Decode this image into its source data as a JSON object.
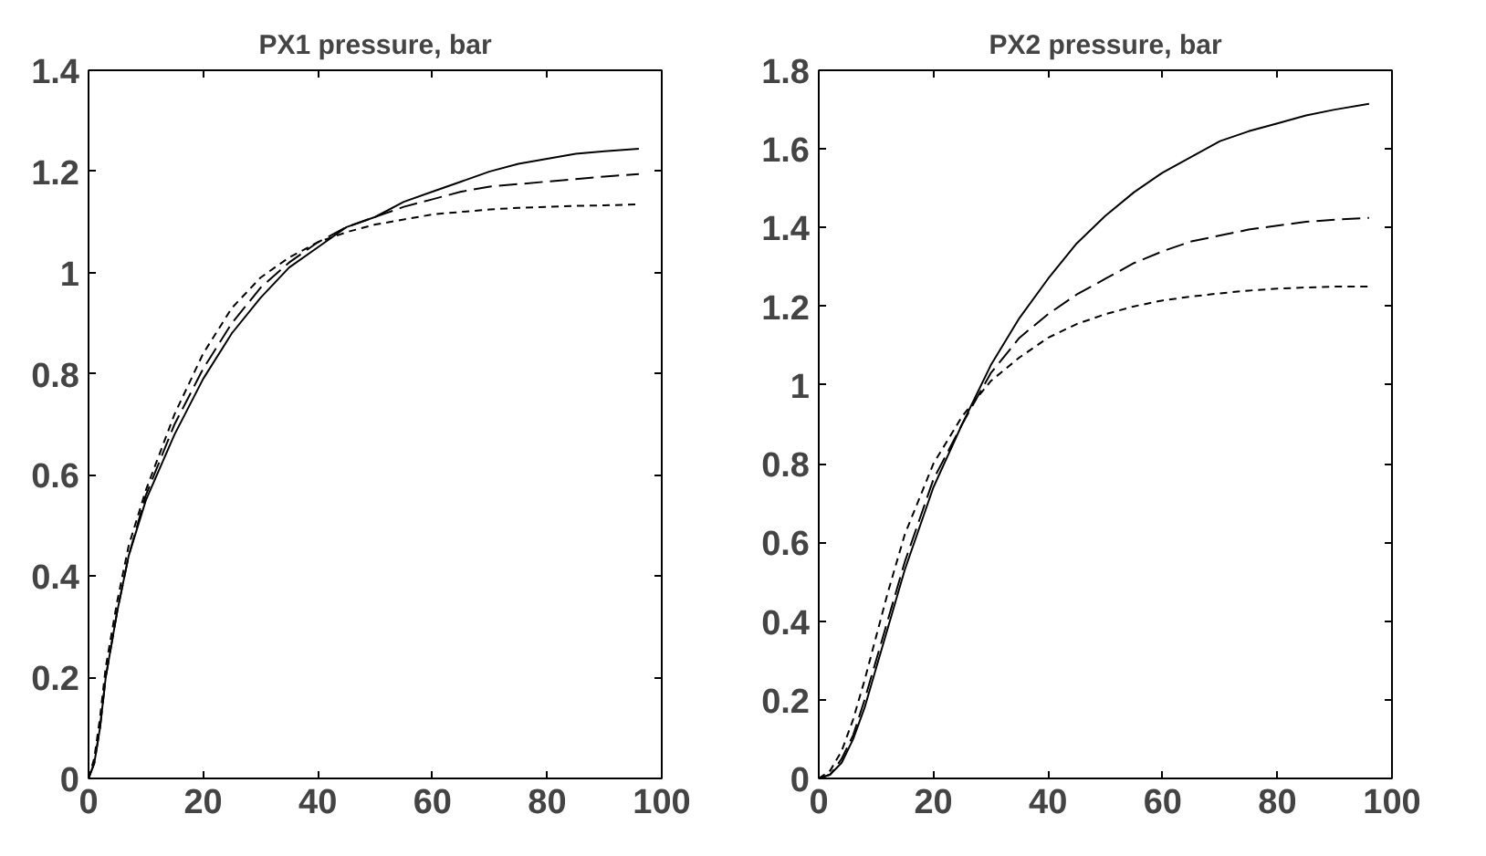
{
  "chart_data": [
    {
      "type": "line",
      "title": "PX1 pressure, bar",
      "x": [
        0,
        1,
        2,
        3,
        5,
        7,
        10,
        15,
        20,
        25,
        30,
        35,
        40,
        45,
        50,
        55,
        60,
        65,
        70,
        75,
        80,
        85,
        90,
        96
      ],
      "xlim": [
        0,
        100
      ],
      "xticks": [
        0,
        20,
        40,
        60,
        80,
        100
      ],
      "ylim": [
        0,
        1.4
      ],
      "yticks": [
        0,
        0.2,
        0.4,
        0.6,
        0.8,
        1,
        1.2,
        1.4
      ],
      "series": [
        {
          "color": "#000000",
          "line_style": "solid",
          "values": [
            0,
            0.03,
            0.1,
            0.2,
            0.33,
            0.44,
            0.55,
            0.68,
            0.79,
            0.88,
            0.95,
            1.01,
            1.05,
            1.09,
            1.11,
            1.14,
            1.16,
            1.18,
            1.2,
            1.215,
            1.225,
            1.235,
            1.24,
            1.245
          ]
        },
        {
          "color": "#000000",
          "line_style": "dashed",
          "values": [
            0,
            0.03,
            0.1,
            0.2,
            0.33,
            0.44,
            0.56,
            0.7,
            0.81,
            0.9,
            0.97,
            1.02,
            1.06,
            1.09,
            1.11,
            1.13,
            1.145,
            1.16,
            1.17,
            1.175,
            1.18,
            1.185,
            1.19,
            1.195
          ]
        },
        {
          "color": "#000000",
          "line_style": "dotted",
          "values": [
            0,
            0.04,
            0.12,
            0.22,
            0.35,
            0.46,
            0.57,
            0.72,
            0.84,
            0.93,
            0.99,
            1.03,
            1.06,
            1.08,
            1.095,
            1.105,
            1.115,
            1.12,
            1.125,
            1.128,
            1.13,
            1.132,
            1.133,
            1.135
          ]
        }
      ]
    },
    {
      "type": "line",
      "title": "PX2 pressure, bar",
      "x": [
        0,
        2,
        4,
        6,
        8,
        10,
        12,
        15,
        20,
        25,
        30,
        35,
        40,
        45,
        50,
        55,
        60,
        65,
        70,
        75,
        80,
        85,
        90,
        96
      ],
      "xlim": [
        0,
        100
      ],
      "xticks": [
        0,
        20,
        40,
        60,
        80,
        100
      ],
      "ylim": [
        0,
        1.8
      ],
      "yticks": [
        0,
        0.2,
        0.4,
        0.6,
        0.8,
        1,
        1.2,
        1.4,
        1.6,
        1.8
      ],
      "series": [
        {
          "color": "#000000",
          "line_style": "solid",
          "values": [
            0,
            0.01,
            0.04,
            0.1,
            0.18,
            0.28,
            0.38,
            0.53,
            0.74,
            0.9,
            1.05,
            1.17,
            1.27,
            1.36,
            1.43,
            1.49,
            1.54,
            1.58,
            1.62,
            1.645,
            1.665,
            1.685,
            1.7,
            1.715
          ]
        },
        {
          "color": "#000000",
          "line_style": "dashed",
          "values": [
            0,
            0.01,
            0.05,
            0.11,
            0.2,
            0.3,
            0.4,
            0.55,
            0.76,
            0.9,
            1.03,
            1.12,
            1.18,
            1.23,
            1.27,
            1.31,
            1.34,
            1.365,
            1.38,
            1.395,
            1.405,
            1.415,
            1.42,
            1.425
          ]
        },
        {
          "color": "#000000",
          "line_style": "dotted",
          "values": [
            0,
            0.02,
            0.07,
            0.15,
            0.25,
            0.36,
            0.47,
            0.62,
            0.8,
            0.92,
            1.01,
            1.07,
            1.12,
            1.155,
            1.18,
            1.2,
            1.215,
            1.225,
            1.233,
            1.24,
            1.245,
            1.248,
            1.25,
            1.25
          ]
        }
      ]
    }
  ]
}
